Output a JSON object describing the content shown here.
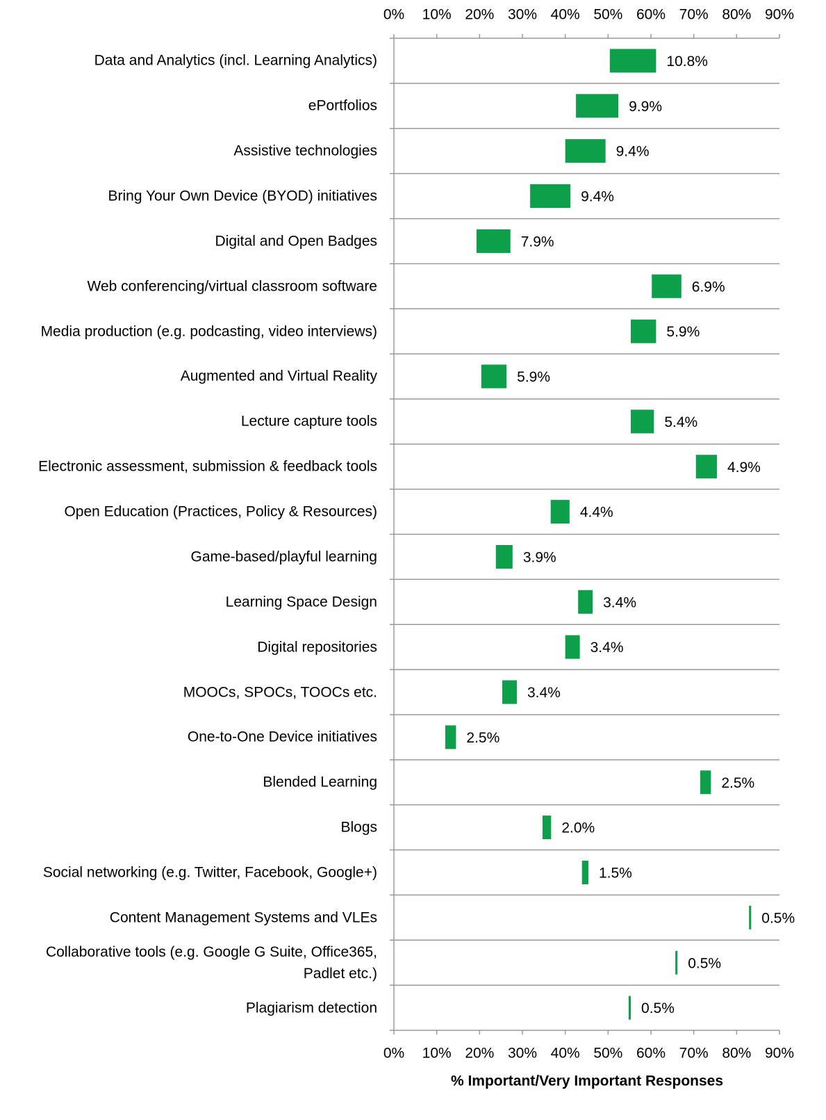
{
  "chart_data": {
    "type": "floating-bar",
    "xlabel": "% Important/Very Important Responses",
    "categories": [
      "Data and Analytics (incl. Learning Analytics)",
      "ePortfolios",
      "Assistive technologies",
      "Bring Your Own Device (BYOD) initiatives",
      "Digital and Open Badges",
      "Web conferencing/virtual classroom software",
      "Media production (e.g. podcasting, video interviews)",
      "Augmented and Virtual Reality",
      "Lecture capture tools",
      "Electronic assessment, submission & feedback tools",
      "Open Education (Practices, Policy & Resources)",
      "Game-based/playful learning",
      "Learning Space Design",
      "Digital repositories",
      "MOOCs, SPOCs, TOOCs etc.",
      "One-to-One Device initiatives",
      "Blended Learning",
      "Blogs",
      "Social networking (e.g. Twitter, Facebook, Google+)",
      "Content Management Systems and VLEs",
      "Collaborative tools (e.g. Google G Suite, Office365, Padlet etc.)",
      "Plagiarism detection"
    ],
    "starts": [
      50.4,
      42.5,
      40.0,
      31.8,
      19.3,
      60.2,
      55.3,
      20.4,
      55.3,
      70.5,
      36.6,
      23.8,
      43.0,
      40.0,
      25.3,
      12.0,
      71.5,
      34.7,
      43.9,
      82.9,
      65.7,
      54.8
    ],
    "values": [
      10.8,
      9.9,
      9.4,
      9.4,
      7.9,
      6.9,
      5.9,
      5.9,
      5.4,
      4.9,
      4.4,
      3.9,
      3.4,
      3.4,
      3.4,
      2.5,
      2.5,
      2.0,
      1.5,
      0.5,
      0.5,
      0.5
    ],
    "value_labels": [
      "10.8%",
      "9.9%",
      "9.4%",
      "9.4%",
      "7.9%",
      "6.9%",
      "5.9%",
      "5.9%",
      "5.4%",
      "4.9%",
      "4.4%",
      "3.9%",
      "3.4%",
      "3.4%",
      "3.4%",
      "2.5%",
      "2.5%",
      "2.0%",
      "1.5%",
      "0.5%",
      "0.5%",
      "0.5%"
    ],
    "color": "#0e9f4b",
    "xlim": [
      0,
      90
    ],
    "xticks": [
      {
        "value": 0,
        "label": "0%"
      },
      {
        "value": 10,
        "label": "10%"
      },
      {
        "value": 20,
        "label": "20%"
      },
      {
        "value": 30,
        "label": "30%"
      },
      {
        "value": 40,
        "label": "40%"
      },
      {
        "value": 50,
        "label": "50%"
      },
      {
        "value": 60,
        "label": "60%"
      },
      {
        "value": 70,
        "label": "70%"
      },
      {
        "value": 80,
        "label": "80%"
      },
      {
        "value": 90,
        "label": "90%"
      }
    ]
  }
}
